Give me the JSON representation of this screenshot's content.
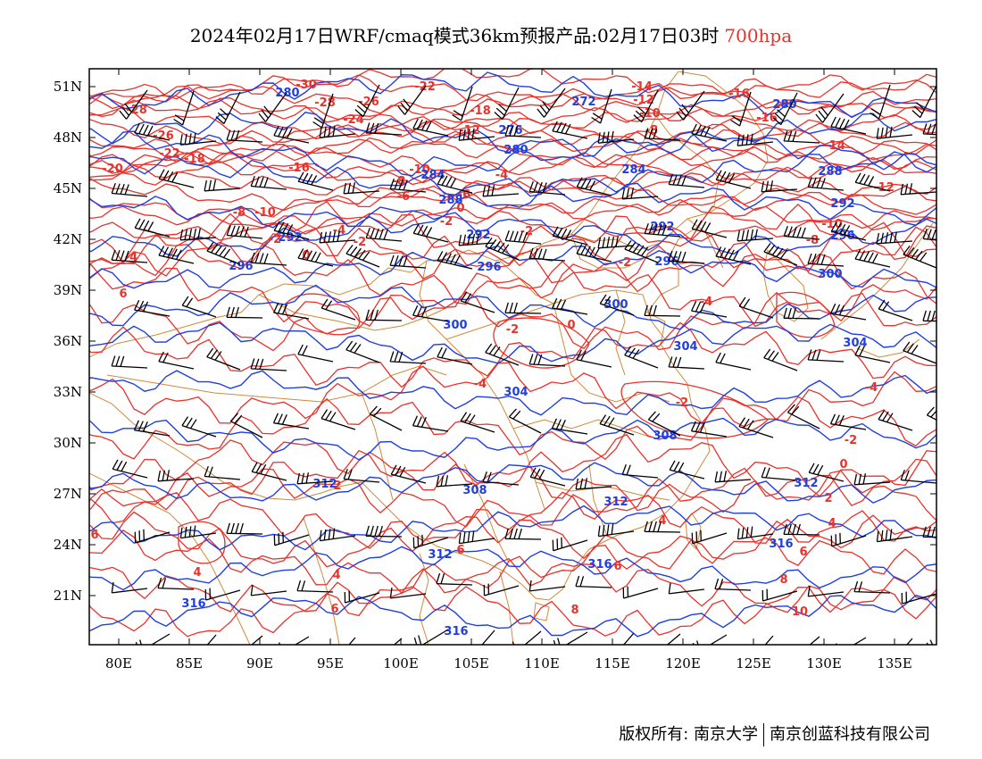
{
  "title": {
    "main": "2024年02月17日WRF/cmaq模式36km预报产品:02月17日03时",
    "level": "700hpa",
    "level_color": "#e8322b"
  },
  "footer": {
    "copyright": "版权所有: 南京大学",
    "company": "南京创蓝科技有限公司"
  },
  "colors": {
    "temperature_isotherms": "#e8322b",
    "geopotential_contours": "#1f3fe0",
    "province_borders": "#d08a3a",
    "wind_barbs": "#000000"
  },
  "axes": {
    "lon_labels": [
      "80E",
      "85E",
      "90E",
      "95E",
      "100E",
      "105E",
      "110E",
      "115E",
      "120E",
      "125E",
      "130E",
      "135E"
    ],
    "lat_labels": [
      "51N",
      "48N",
      "45N",
      "42N",
      "39N",
      "36N",
      "33N",
      "30N",
      "27N",
      "24N",
      "21N"
    ]
  },
  "temperature_labels": [
    "-30",
    "-28",
    "-26",
    "-24",
    "-22",
    "-20",
    "-18",
    "-16",
    "-14",
    "-12",
    "-10",
    "-8",
    "-6",
    "-4",
    "-2",
    "0",
    "2",
    "4",
    "6",
    "8",
    "10"
  ],
  "height_labels": [
    "280",
    "276",
    "284",
    "288",
    "292",
    "296",
    "300",
    "304",
    "308",
    "312",
    "316"
  ]
}
